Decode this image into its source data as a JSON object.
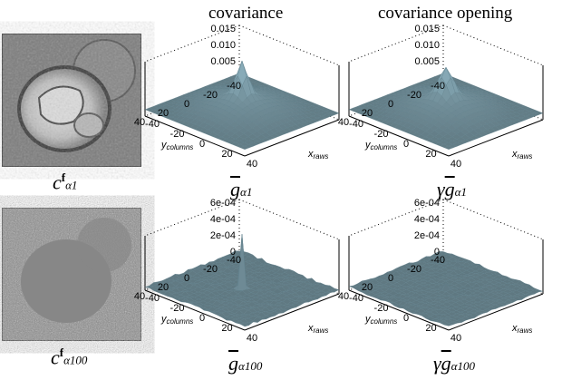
{
  "headers": {
    "col2": "covariance",
    "col3": "covariance opening"
  },
  "captions": {
    "c_a1": {
      "base": "c",
      "sup": "f",
      "sub": "α1"
    },
    "c_a100": {
      "base": "c",
      "sup": "f",
      "sub": "α100"
    },
    "g_a1": {
      "base": "g",
      "sub": "α1"
    },
    "g_a100": {
      "base": "g",
      "sub": "α100"
    },
    "gg_a1": {
      "prefix": "γ",
      "base": "g",
      "sub": "α1"
    },
    "gg_a100": {
      "prefix": "γ",
      "base": "g",
      "sub": "α100"
    }
  },
  "axes": {
    "x_label": "x",
    "x_sub": "raws",
    "y_label": "y",
    "y_sub": "columns",
    "row1_z_ticks": [
      "0.015",
      "0.010",
      "0.005"
    ],
    "row2_z_ticks": [
      "6e-04",
      "4e-04",
      "2e-04",
      "0"
    ],
    "xy_ticks": [
      "-40",
      "-20",
      "0",
      "20",
      "40"
    ]
  },
  "colors": {
    "surface": "#9db9c3",
    "surface_edge": "#5f7f8c",
    "frame": "#000000"
  }
}
